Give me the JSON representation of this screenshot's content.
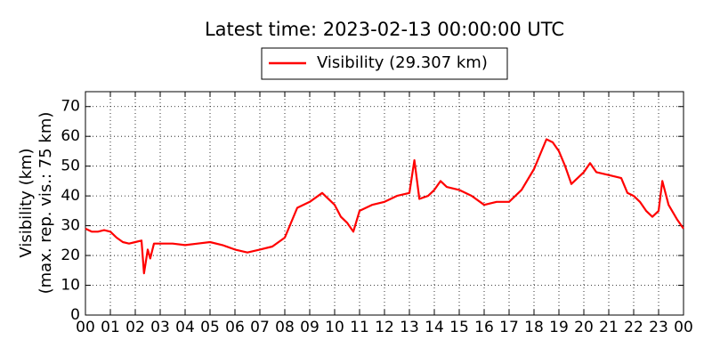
{
  "chart_data": {
    "type": "line",
    "title": "Latest time: 2023-02-13 00:00:00 UTC",
    "ylabel": [
      "Visibility (km)",
      "(max. rep. vis.: 75 km)"
    ],
    "x": [
      0,
      0.25,
      0.5,
      0.75,
      1,
      1.25,
      1.5,
      1.75,
      2,
      2.25,
      2.35,
      2.5,
      2.6,
      2.75,
      3,
      3.5,
      4,
      4.5,
      5,
      5.5,
      6,
      6.5,
      7,
      7.5,
      8,
      8.5,
      9,
      9.5,
      10,
      10.25,
      10.5,
      10.75,
      11,
      11.5,
      12,
      12.5,
      13,
      13.2,
      13.4,
      13.75,
      14,
      14.25,
      14.5,
      15,
      15.5,
      16,
      16.5,
      17,
      17.5,
      18,
      18.5,
      18.75,
      19,
      19.25,
      19.5,
      20,
      20.25,
      20.5,
      21,
      21.5,
      21.75,
      22,
      22.25,
      22.5,
      22.75,
      23,
      23.15,
      23.4,
      23.75,
      24
    ],
    "series": [
      {
        "name": "Visibility (29.307 km)",
        "color": "#ff0000",
        "values": [
          29,
          28,
          28,
          28.5,
          28,
          26,
          24.5,
          24,
          24.5,
          25,
          14,
          22,
          19,
          24,
          24,
          24,
          23.5,
          24,
          24.5,
          23.5,
          22,
          21,
          22,
          23,
          26,
          36,
          38,
          41,
          37,
          33,
          31,
          28,
          35,
          37,
          38,
          40,
          41,
          52,
          39,
          40,
          42,
          45,
          43,
          42,
          40,
          37,
          38,
          38,
          42,
          49,
          59,
          58,
          55,
          50,
          44,
          48,
          51,
          48,
          47,
          46,
          41,
          40,
          38,
          35,
          33,
          35,
          45,
          37,
          32,
          29
        ]
      }
    ],
    "xlim": [
      0,
      24
    ],
    "xticks": [
      {
        "value": 0,
        "label": "00"
      },
      {
        "value": 1,
        "label": "01"
      },
      {
        "value": 2,
        "label": "02"
      },
      {
        "value": 3,
        "label": "03"
      },
      {
        "value": 4,
        "label": "04"
      },
      {
        "value": 5,
        "label": "05"
      },
      {
        "value": 6,
        "label": "06"
      },
      {
        "value": 7,
        "label": "07"
      },
      {
        "value": 8,
        "label": "08"
      },
      {
        "value": 9,
        "label": "09"
      },
      {
        "value": 10,
        "label": "10"
      },
      {
        "value": 11,
        "label": "11"
      },
      {
        "value": 12,
        "label": "12"
      },
      {
        "value": 13,
        "label": "13"
      },
      {
        "value": 14,
        "label": "14"
      },
      {
        "value": 15,
        "label": "15"
      },
      {
        "value": 16,
        "label": "16"
      },
      {
        "value": 17,
        "label": "17"
      },
      {
        "value": 18,
        "label": "18"
      },
      {
        "value": 19,
        "label": "19"
      },
      {
        "value": 20,
        "label": "20"
      },
      {
        "value": 21,
        "label": "21"
      },
      {
        "value": 22,
        "label": "22"
      },
      {
        "value": 23,
        "label": "23"
      },
      {
        "value": 24,
        "label": "00"
      }
    ],
    "ylim": [
      0,
      75
    ],
    "yticks": [
      0,
      10,
      20,
      30,
      40,
      50,
      60,
      70
    ],
    "grid": true,
    "legend": "top"
  }
}
